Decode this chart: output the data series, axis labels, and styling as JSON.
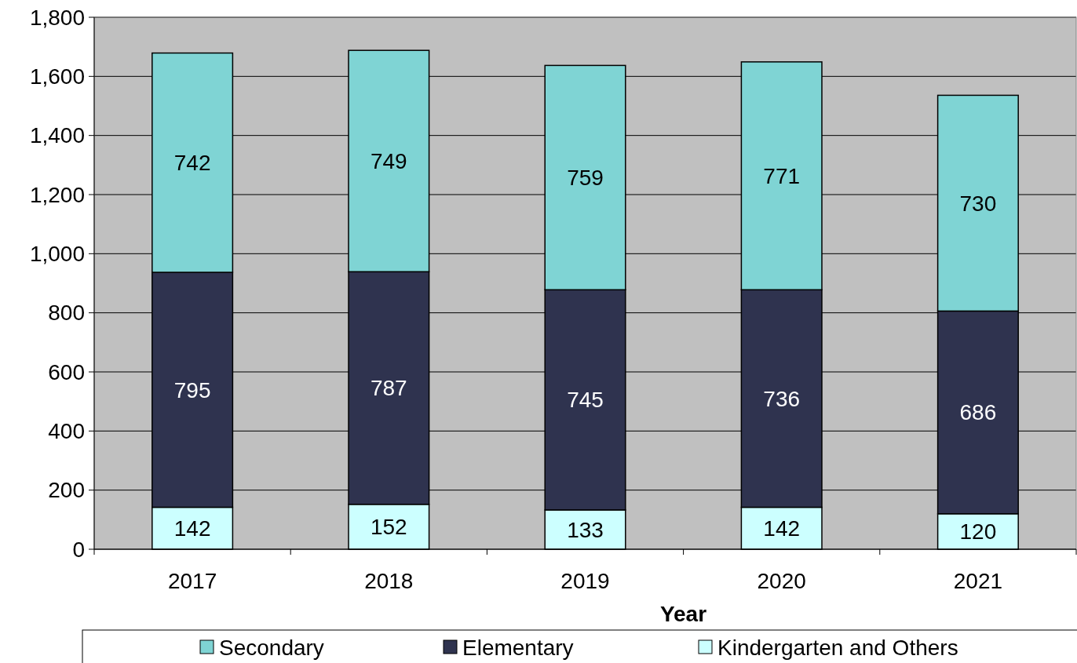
{
  "chart_data": {
    "type": "bar",
    "stacked": true,
    "xlabel": "Year",
    "categories": [
      "2017",
      "2018",
      "2019",
      "2020",
      "2021"
    ],
    "series": [
      {
        "name": "Kindergarten and Others",
        "color": "#ccffff",
        "values": [
          142,
          152,
          133,
          142,
          120
        ]
      },
      {
        "name": "Elementary",
        "color": "#2f334f",
        "values": [
          795,
          787,
          745,
          736,
          686
        ]
      },
      {
        "name": "Secondary",
        "color": "#7fd4d4",
        "values": [
          742,
          749,
          759,
          771,
          730
        ]
      }
    ],
    "ylim": [
      0,
      1800
    ],
    "yticks": [
      0,
      200,
      400,
      600,
      800,
      {
        "value": 1000,
        "label": "1,000"
      },
      {
        "value": 1200,
        "label": "1,200"
      },
      {
        "value": 1400,
        "label": "1,400"
      },
      {
        "value": 1600,
        "label": "1,600"
      },
      {
        "value": 1800,
        "label": "1,800"
      }
    ],
    "grid": "y",
    "legend": "bottom",
    "data_labels": true
  }
}
